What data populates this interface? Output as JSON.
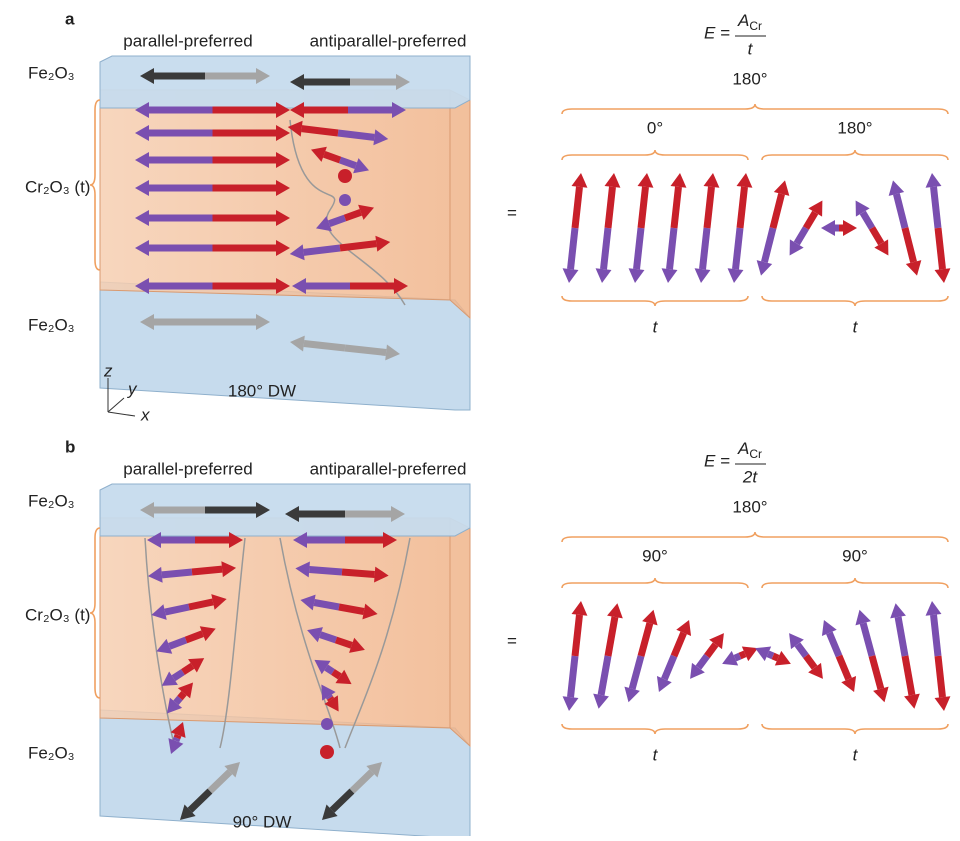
{
  "panels": [
    {
      "label": "a",
      "headings": [
        "parallel-preferred",
        "antiparallel-preferred"
      ],
      "layers": {
        "top": "Fe₂O₃",
        "middle": "Cr₂O₃ (t)",
        "bottom": "Fe₂O₃"
      },
      "axes": [
        "z",
        "y",
        "x"
      ],
      "wall": "180° DW",
      "equation": {
        "lhs": "E =",
        "numerator": "A",
        "numerator_sub": "Cr",
        "denominator": "t"
      },
      "total_angle": "180°",
      "segments": [
        {
          "angle": "0°",
          "thickness": "t"
        },
        {
          "angle": "180°",
          "thickness": "t"
        }
      ]
    },
    {
      "label": "b",
      "headings": [
        "parallel-preferred",
        "antiparallel-preferred"
      ],
      "layers": {
        "top": "Fe₂O₃",
        "middle": "Cr₂O₃ (t)",
        "bottom": "Fe₂O₃"
      },
      "wall": "90° DW",
      "equation": {
        "lhs": "E =",
        "numerator": "A",
        "numerator_sub": "Cr",
        "denominator": "2t"
      },
      "total_angle": "180°",
      "segments": [
        {
          "angle": "90°",
          "thickness": "t"
        },
        {
          "angle": "90°",
          "thickness": "t"
        }
      ]
    }
  ]
}
